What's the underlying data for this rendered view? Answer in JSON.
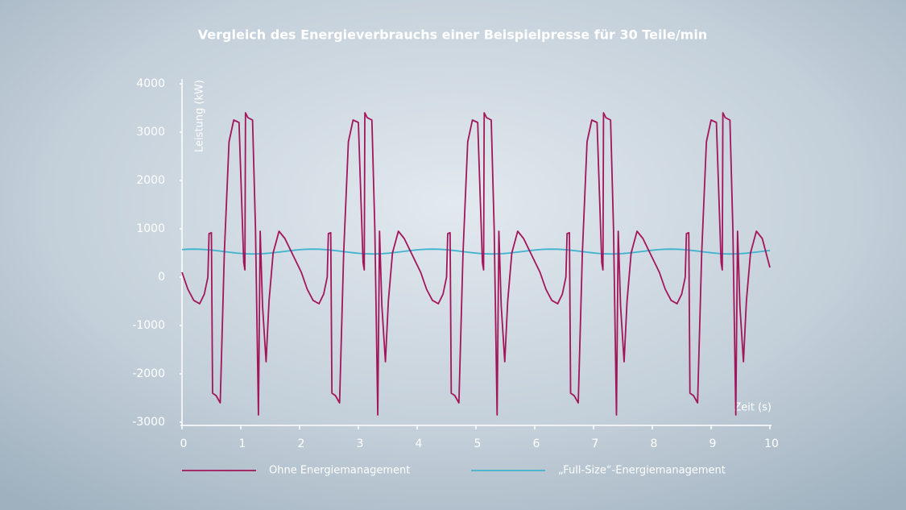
{
  "chart_data": {
    "type": "line",
    "title": "Vergleich des Energieverbrauchs einer Beispielpresse für 30 Teile/min",
    "y_label": "Leistung (kW)",
    "x_label": "Zeit (s)",
    "xlim": [
      0,
      10
    ],
    "ylim": [
      -3000,
      4000
    ],
    "xticks": [
      0,
      1,
      2,
      3,
      4,
      5,
      6,
      7,
      8,
      9,
      10
    ],
    "yticks": [
      -3000,
      -2000,
      -1000,
      0,
      1000,
      2000,
      3000,
      4000
    ],
    "legend": "bottom",
    "x": [
      0,
      0.1,
      0.2,
      0.3,
      0.38,
      0.44,
      0.46,
      0.5,
      0.52,
      0.58,
      0.65,
      0.72,
      0.8,
      0.88,
      0.97,
      1.05,
      1.07,
      1.08,
      1.12,
      1.2,
      1.25,
      1.3,
      1.33,
      1.37,
      1.43,
      1.48,
      1.55,
      1.65,
      1.75,
      1.85,
      1.95,
      2.03,
      2.13,
      2.23,
      2.33,
      2.41,
      2.47,
      2.49,
      2.53,
      2.55,
      2.61,
      2.68,
      2.75,
      2.83,
      2.91,
      3.0,
      3.08,
      3.1,
      3.11,
      3.15,
      3.23,
      3.28,
      3.33,
      3.36,
      3.4,
      3.46,
      3.51,
      3.58,
      3.68,
      3.78,
      3.88,
      3.98,
      4.06,
      4.16,
      4.26,
      4.36,
      4.44,
      4.5,
      4.52,
      4.56,
      4.58,
      4.64,
      4.71,
      4.78,
      4.86,
      4.94,
      5.03,
      5.11,
      5.13,
      5.14,
      5.18,
      5.26,
      5.31,
      5.36,
      5.39,
      5.43,
      5.49,
      5.54,
      5.61,
      5.71,
      5.81,
      5.91,
      6.01,
      6.09,
      6.19,
      6.29,
      6.39,
      6.47,
      6.53,
      6.55,
      6.59,
      6.61,
      6.67,
      6.74,
      6.81,
      6.89,
      6.97,
      7.06,
      7.14,
      7.16,
      7.17,
      7.21,
      7.29,
      7.34,
      7.39,
      7.42,
      7.46,
      7.52,
      7.57,
      7.64,
      7.74,
      7.84,
      7.94,
      8.04,
      8.12,
      8.22,
      8.32,
      8.42,
      8.5,
      8.56,
      8.58,
      8.62,
      8.64,
      8.7,
      8.77,
      8.84,
      8.92,
      9.0,
      9.09,
      9.17,
      9.19,
      9.2,
      9.24,
      9.32,
      9.37,
      9.42,
      9.45,
      9.49,
      9.55,
      9.6,
      9.67,
      9.77,
      9.87,
      10
    ],
    "series": [
      {
        "name": "Ohne Energiemanagement",
        "color": "#a3155b",
        "values": [
          100,
          -250,
          -480,
          -550,
          -350,
          0,
          900,
          920,
          -2400,
          -2450,
          -2600,
          500,
          2800,
          3250,
          3200,
          300,
          150,
          3400,
          3300,
          3250,
          1000,
          -2850,
          950,
          -600,
          -1750,
          -500,
          500,
          950,
          800,
          550,
          300,
          100,
          -250,
          -480,
          -550,
          -350,
          0,
          900,
          920,
          -2400,
          -2450,
          -2600,
          500,
          2800,
          3250,
          3200,
          300,
          150,
          3400,
          3300,
          3250,
          1000,
          -2850,
          950,
          -600,
          -1750,
          -500,
          500,
          950,
          800,
          550,
          300,
          100,
          -250,
          -480,
          -550,
          -350,
          0,
          900,
          920,
          -2400,
          -2450,
          -2600,
          500,
          2800,
          3250,
          3200,
          300,
          150,
          3400,
          3300,
          3250,
          1000,
          -2850,
          950,
          -600,
          -1750,
          -500,
          500,
          950,
          800,
          550,
          300,
          100,
          -250,
          -480,
          -550,
          -350,
          0,
          900,
          920,
          -2400,
          -2450,
          -2600,
          500,
          2800,
          3250,
          3200,
          300,
          150,
          3400,
          3300,
          3250,
          1000,
          -2850,
          950,
          -600,
          -1750,
          -500,
          500,
          950,
          800,
          550,
          300,
          100,
          -250,
          -480,
          -550,
          -350,
          0,
          900,
          920,
          -2400,
          -2450,
          -2600,
          500,
          2800,
          3250,
          3200,
          300,
          150,
          3400,
          3300,
          3250,
          1000,
          -2850,
          950,
          -600,
          -1750,
          -500,
          500,
          950,
          800,
          200
        ]
      },
      {
        "name": "„Full-Size“-Energiemanagement",
        "color": "#3fb3cf",
        "values": [
          571,
          578,
          580,
          578,
          572,
          567,
          565,
          560,
          557,
          549,
          539,
          528,
          516,
          505,
          494,
          486,
          485,
          484,
          482,
          480,
          480,
          482,
          483,
          486,
          491,
          496,
          505,
          519,
          534,
          549,
          562,
          571,
          578,
          580,
          578,
          572,
          567,
          565,
          560,
          557,
          549,
          539,
          528,
          516,
          505,
          494,
          486,
          485,
          484,
          482,
          480,
          480,
          482,
          483,
          486,
          491,
          496,
          505,
          519,
          534,
          549,
          562,
          571,
          578,
          580,
          578,
          572,
          567,
          565,
          560,
          557,
          549,
          539,
          528,
          516,
          505,
          494,
          486,
          485,
          484,
          482,
          480,
          480,
          482,
          483,
          486,
          491,
          496,
          505,
          519,
          534,
          549,
          562,
          571,
          578,
          580,
          578,
          572,
          567,
          565,
          560,
          557,
          549,
          539,
          528,
          516,
          505,
          494,
          486,
          485,
          484,
          482,
          480,
          480,
          482,
          483,
          486,
          491,
          496,
          505,
          519,
          534,
          549,
          562,
          571,
          578,
          580,
          578,
          572,
          567,
          565,
          560,
          557,
          549,
          539,
          528,
          516,
          505,
          494,
          486,
          485,
          484,
          482,
          480,
          480,
          482,
          483,
          486,
          491,
          496,
          505,
          519,
          534,
          553
        ]
      }
    ]
  }
}
